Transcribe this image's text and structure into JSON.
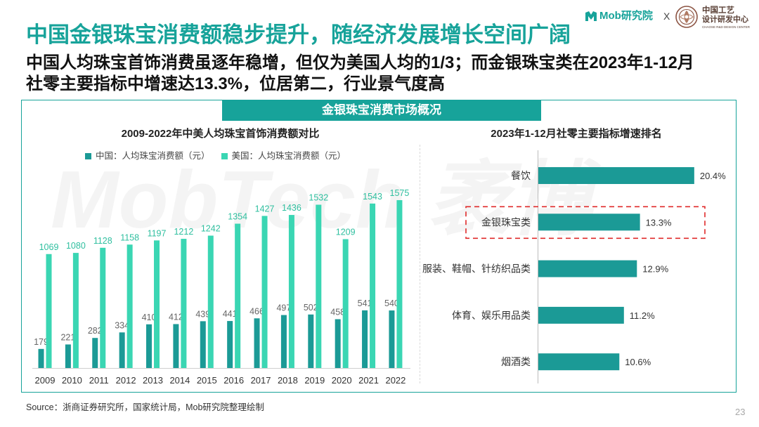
{
  "slide": {
    "title": "中国金银珠宝消费额稳步提升，随经济发展增长空间广阔",
    "subtitle": [
      "中国人均珠宝首饰消费虽逐年稳增，但仅为美国人均的1/3；而金银珠宝类在2023年1-12月",
      "社零主要指标中增速达13.3%，位居第二，行业景气度高"
    ],
    "section_header": "金银珠宝消费市场概况",
    "source": "Source：浙商证券研究所，国家统计局，Mob研究院整理绘制",
    "page_number": "23",
    "watermark": "MobTech 袤博"
  },
  "logo": {
    "brand_icon": "mob-logo-icon",
    "brand": "Mob研究院",
    "separator": "X",
    "partner_icon": "partner-emblem-icon",
    "partner_name_line1": "中国工艺",
    "partner_name_line2": "设计研发中心",
    "partner_name_en": "CHAOSE R&D DESIGN CENTER"
  },
  "colors": {
    "accent": "#17a39a",
    "highlight": "#e02a2a"
  },
  "chart_data": [
    {
      "type": "bar",
      "title": "2009-2022年中美人均珠宝首饰消费额对比",
      "categories": [
        "2009",
        "2010",
        "2011",
        "2012",
        "2013",
        "2014",
        "2015",
        "2016",
        "2017",
        "2018",
        "2019",
        "2020",
        "2021",
        "2022"
      ],
      "series": [
        {
          "name": "中国：人均珠宝消费额（元）",
          "values": [
            179,
            221,
            282,
            334,
            410,
            412,
            439,
            441,
            466,
            497,
            502,
            458,
            541,
            540
          ],
          "color": "#1b9a96",
          "label_color": "#666666"
        },
        {
          "name": "美国：人均珠宝消费额（元）",
          "values": [
            1069,
            1080,
            1128,
            1158,
            1197,
            1212,
            1242,
            1354,
            1427,
            1436,
            1532,
            1209,
            1543,
            1575
          ],
          "color": "#3ad6b3",
          "label_color": "#2fbf9f"
        }
      ],
      "ylim": [
        0,
        1700
      ],
      "legend": "top",
      "grid": false,
      "data_labels": true
    },
    {
      "type": "bar",
      "orientation": "horizontal",
      "title": "2023年1-12月社零主要指标增速排名",
      "categories": [
        "餐饮",
        "金银珠宝类",
        "服装、鞋帽、针纺织品类",
        "体育、娱乐用品类",
        "烟酒类"
      ],
      "values": [
        20.4,
        13.3,
        12.9,
        11.2,
        10.6
      ],
      "value_labels": [
        "20.4%",
        "13.3%",
        "12.9%",
        "11.2%",
        "10.6%"
      ],
      "color": "#1b9a96",
      "highlight_index": 1,
      "highlight_color": "#e02a2a",
      "xlim": [
        0,
        24
      ],
      "grid": false,
      "data_labels": true
    }
  ]
}
